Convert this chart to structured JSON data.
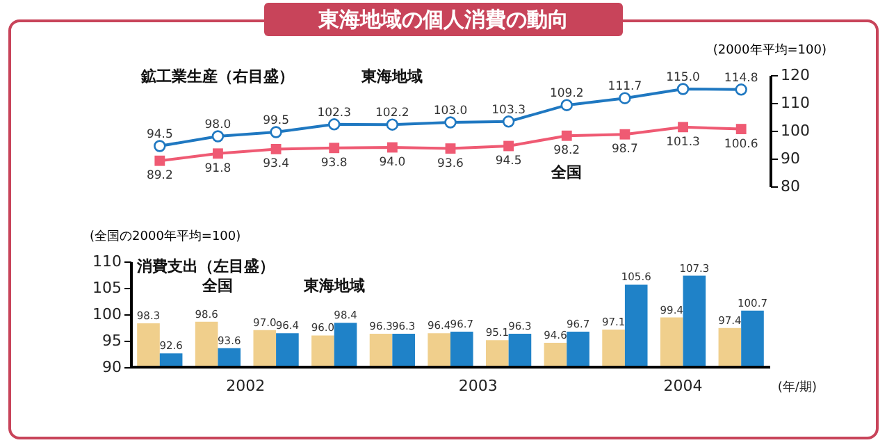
{
  "chart_data": [
    {
      "type": "line",
      "title": "東海地域の個人消費の動向",
      "ylabel": "(2000年平均=100)",
      "categories": [
        null,
        null,
        null,
        null,
        null,
        null,
        null,
        null,
        null,
        null,
        null
      ],
      "series": [
        {
          "name": "東海地域",
          "color": "#1f78c1",
          "marker": "circle",
          "values": [
            94.5,
            98.0,
            99.5,
            102.3,
            102.2,
            103.0,
            103.3,
            109.2,
            111.7,
            115.0,
            114.8
          ],
          "value_labels": [
            "94.5",
            "98.0",
            "99.5",
            "102.3",
            "102.2",
            "103.0",
            "103.3",
            "109.2",
            "111.7",
            "115.0",
            "114.8"
          ]
        },
        {
          "name": "全国",
          "color": "#ef5a73",
          "marker": "square",
          "values": [
            89.2,
            91.8,
            93.4,
            93.8,
            94.0,
            93.6,
            94.5,
            98.2,
            98.7,
            101.3,
            100.6
          ],
          "value_labels": [
            "89.2",
            "91.8",
            "93.4",
            "93.8",
            "94.0",
            "93.6",
            "94.5",
            "98.2",
            "98.7",
            "101.3",
            "100.6"
          ]
        }
      ],
      "ylim": [
        80,
        120
      ],
      "yticks": [
        80,
        90,
        100,
        110,
        120
      ],
      "tick_labels": "y",
      "annotations": [
        "鉱工業生産（右目盛）"
      ]
    },
    {
      "type": "bar",
      "ylabel": "(全国の2000年平均=100)",
      "xlabel": "(年/期)",
      "categories": [
        null,
        null,
        null,
        null,
        null,
        null,
        null,
        null,
        null,
        null,
        null
      ],
      "series": [
        {
          "name": "全国",
          "color": "#f0cf8c",
          "values": [
            98.3,
            98.6,
            97.0,
            96.0,
            96.3,
            96.4,
            95.1,
            94.6,
            97.1,
            99.4,
            97.4
          ],
          "value_labels": [
            "98.3",
            "98.6",
            "97.0",
            "96.0",
            "96.3",
            "96.4",
            "95.1",
            "94.6",
            "97.1",
            "99.4",
            "97.4"
          ]
        },
        {
          "name": "東海地域",
          "color": "#1f82c8",
          "values": [
            92.6,
            93.6,
            96.4,
            98.4,
            96.3,
            96.7,
            96.3,
            96.7,
            105.6,
            107.3,
            100.7
          ],
          "value_labels": [
            "92.6",
            "93.6",
            "96.4",
            "98.4",
            "96.3",
            "96.7",
            "96.3",
            "96.7",
            "105.6",
            "107.3",
            "100.7"
          ]
        }
      ],
      "ylim": [
        90,
        110
      ],
      "yticks": [
        90,
        95,
        100,
        105,
        110
      ],
      "tick_labels": "y",
      "annotations": [
        "消費支出（左目盛）",
        "2002",
        "2003",
        "2004"
      ]
    }
  ]
}
